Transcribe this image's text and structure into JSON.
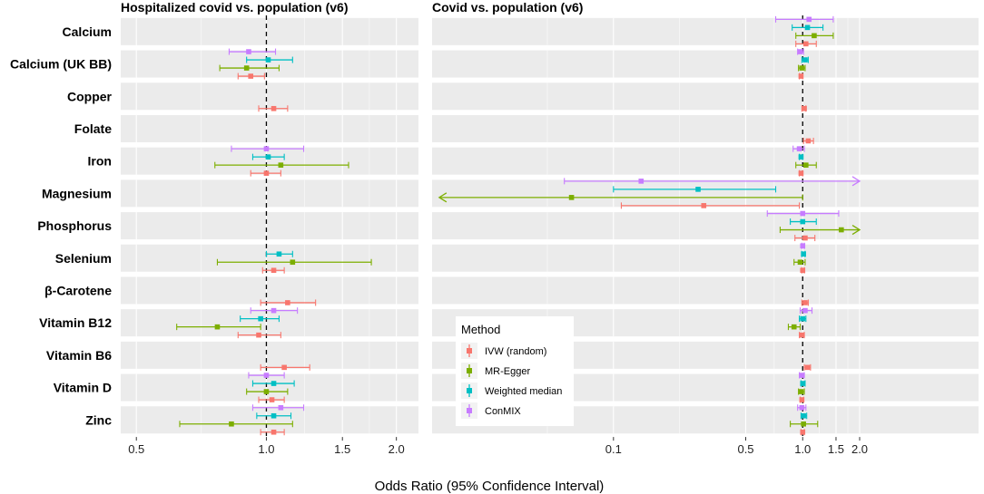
{
  "chart_data": {
    "type": "forest",
    "xlabel": "Odds Ratio (95% Confidence Interval)",
    "rows": [
      "Calcium",
      "Calcium (UK BB)",
      "Copper",
      "Folate",
      "Iron",
      "Magnesium",
      "Phosphorus",
      "Selenium",
      "β-Carotene",
      "Vitamin B12",
      "Vitamin B6",
      "Vitamin D",
      "Zinc"
    ],
    "methods": [
      {
        "name": "IVW (random)",
        "color": "#F8766D"
      },
      {
        "name": "MR-Egger",
        "color": "#7CAE00"
      },
      {
        "name": "Weighted median",
        "color": "#00BFC4"
      },
      {
        "name": "ConMIX",
        "color": "#C77CFF"
      }
    ],
    "legend": {
      "title": "Method",
      "position": "inside bottom-left of right panel"
    },
    "panels": [
      {
        "title": "Hospitalized covid vs. population (v6)",
        "xscale": "log",
        "xlim": [
          0.46,
          2.25
        ],
        "ticks": [
          0.5,
          1.0,
          1.5,
          2.0
        ],
        "tick_labels": [
          "0.5",
          "1.0",
          "1.5",
          "2.0"
        ],
        "reference": 1.0,
        "estimates": [
          {
            "row": "Calcium (UK BB)",
            "method": "ConMIX",
            "or": 0.91,
            "lo": 0.82,
            "hi": 1.05
          },
          {
            "row": "Calcium (UK BB)",
            "method": "Weighted median",
            "or": 1.01,
            "lo": 0.9,
            "hi": 1.15
          },
          {
            "row": "Calcium (UK BB)",
            "method": "MR-Egger",
            "or": 0.9,
            "lo": 0.78,
            "hi": 1.07
          },
          {
            "row": "Calcium (UK BB)",
            "method": "IVW (random)",
            "or": 0.92,
            "lo": 0.86,
            "hi": 0.99
          },
          {
            "row": "Copper",
            "method": "IVW (random)",
            "or": 1.04,
            "lo": 0.96,
            "hi": 1.12
          },
          {
            "row": "Iron",
            "method": "ConMIX",
            "or": 1.0,
            "lo": 0.83,
            "hi": 1.22
          },
          {
            "row": "Iron",
            "method": "Weighted median",
            "or": 1.01,
            "lo": 0.93,
            "hi": 1.1
          },
          {
            "row": "Iron",
            "method": "MR-Egger",
            "or": 1.08,
            "lo": 0.76,
            "hi": 1.55
          },
          {
            "row": "Iron",
            "method": "IVW (random)",
            "or": 1.0,
            "lo": 0.92,
            "hi": 1.08
          },
          {
            "row": "Selenium",
            "method": "Weighted median",
            "or": 1.07,
            "lo": 1.0,
            "hi": 1.15
          },
          {
            "row": "Selenium",
            "method": "MR-Egger",
            "or": 1.15,
            "lo": 0.77,
            "hi": 1.75
          },
          {
            "row": "Selenium",
            "method": "IVW (random)",
            "or": 1.04,
            "lo": 0.98,
            "hi": 1.1
          },
          {
            "row": "β-Carotene",
            "method": "IVW (random)",
            "or": 1.12,
            "lo": 0.97,
            "hi": 1.3
          },
          {
            "row": "Vitamin B12",
            "method": "ConMIX",
            "or": 1.04,
            "lo": 0.92,
            "hi": 1.18
          },
          {
            "row": "Vitamin B12",
            "method": "Weighted median",
            "or": 0.97,
            "lo": 0.87,
            "hi": 1.07
          },
          {
            "row": "Vitamin B12",
            "method": "MR-Egger",
            "or": 0.77,
            "lo": 0.62,
            "hi": 0.97
          },
          {
            "row": "Vitamin B12",
            "method": "IVW (random)",
            "or": 0.96,
            "lo": 0.86,
            "hi": 1.08
          },
          {
            "row": "Vitamin B6",
            "method": "IVW (random)",
            "or": 1.1,
            "lo": 0.97,
            "hi": 1.26
          },
          {
            "row": "Vitamin D",
            "method": "ConMIX",
            "or": 1.0,
            "lo": 0.91,
            "hi": 1.1
          },
          {
            "row": "Vitamin D",
            "method": "Weighted median",
            "or": 1.04,
            "lo": 0.93,
            "hi": 1.16
          },
          {
            "row": "Vitamin D",
            "method": "MR-Egger",
            "or": 1.0,
            "lo": 0.9,
            "hi": 1.12
          },
          {
            "row": "Vitamin D",
            "method": "IVW (random)",
            "or": 1.03,
            "lo": 0.96,
            "hi": 1.1
          },
          {
            "row": "Zinc",
            "method": "ConMIX",
            "or": 1.08,
            "lo": 0.93,
            "hi": 1.22
          },
          {
            "row": "Zinc",
            "method": "Weighted median",
            "or": 1.04,
            "lo": 0.95,
            "hi": 1.14
          },
          {
            "row": "Zinc",
            "method": "MR-Egger",
            "or": 0.83,
            "lo": 0.63,
            "hi": 1.15
          },
          {
            "row": "Zinc",
            "method": "IVW (random)",
            "or": 1.04,
            "lo": 0.97,
            "hi": 1.1
          }
        ]
      },
      {
        "title": "Covid vs. population (v6)",
        "xscale": "log",
        "xlim": [
          0.011,
          8.5
        ],
        "ticks": [
          0.1,
          0.5,
          1.0,
          1.5,
          2.0
        ],
        "tick_labels": [
          "0.1",
          "0.5",
          "1.0",
          "1.5",
          "2.0"
        ],
        "reference": 1.0,
        "estimates": [
          {
            "row": "Calcium",
            "method": "ConMIX",
            "or": 1.08,
            "lo": 0.72,
            "hi": 1.45
          },
          {
            "row": "Calcium",
            "method": "Weighted median",
            "or": 1.06,
            "lo": 0.88,
            "hi": 1.28
          },
          {
            "row": "Calcium",
            "method": "MR-Egger",
            "or": 1.15,
            "lo": 0.92,
            "hi": 1.45
          },
          {
            "row": "Calcium",
            "method": "IVW (random)",
            "or": 1.04,
            "lo": 0.92,
            "hi": 1.18
          },
          {
            "row": "Calcium (UK BB)",
            "method": "ConMIX",
            "or": 0.97,
            "lo": 0.94,
            "hi": 1.01
          },
          {
            "row": "Calcium (UK BB)",
            "method": "Weighted median",
            "or": 1.03,
            "lo": 0.99,
            "hi": 1.07
          },
          {
            "row": "Calcium (UK BB)",
            "method": "MR-Egger",
            "or": 0.99,
            "lo": 0.95,
            "hi": 1.03
          },
          {
            "row": "Calcium (UK BB)",
            "method": "IVW (random)",
            "or": 0.98,
            "lo": 0.96,
            "hi": 1.0
          },
          {
            "row": "Copper",
            "method": "IVW (random)",
            "or": 1.02,
            "lo": 0.99,
            "hi": 1.04
          },
          {
            "row": "Folate",
            "method": "IVW (random)",
            "or": 1.07,
            "lo": 1.01,
            "hi": 1.14
          },
          {
            "row": "Iron",
            "method": "ConMIX",
            "or": 0.96,
            "lo": 0.89,
            "hi": 1.02
          },
          {
            "row": "Iron",
            "method": "Weighted median",
            "or": 0.98,
            "lo": 0.96,
            "hi": 1.0
          },
          {
            "row": "Iron",
            "method": "MR-Egger",
            "or": 1.04,
            "lo": 0.92,
            "hi": 1.18
          },
          {
            "row": "Iron",
            "method": "IVW (random)",
            "or": 0.98,
            "lo": 0.96,
            "hi": 1.0
          },
          {
            "row": "Magnesium",
            "method": "ConMIX",
            "or": 0.14,
            "lo": 0.055,
            "hi": 2.0,
            "arrow_hi": true
          },
          {
            "row": "Magnesium",
            "method": "Weighted median",
            "or": 0.28,
            "lo": 0.1,
            "hi": 0.72
          },
          {
            "row": "Magnesium",
            "method": "MR-Egger",
            "or": 0.06,
            "lo": 0.012,
            "hi": 1.0,
            "arrow_lo": true
          },
          {
            "row": "Magnesium",
            "method": "IVW (random)",
            "or": 0.3,
            "lo": 0.11,
            "hi": 0.96
          },
          {
            "row": "Phosphorus",
            "method": "ConMIX",
            "or": 1.0,
            "lo": 0.65,
            "hi": 1.55
          },
          {
            "row": "Phosphorus",
            "method": "Weighted median",
            "or": 1.0,
            "lo": 0.86,
            "hi": 1.18
          },
          {
            "row": "Phosphorus",
            "method": "MR-Egger",
            "or": 1.6,
            "lo": 0.76,
            "hi": 2.0,
            "arrow_hi": true
          },
          {
            "row": "Phosphorus",
            "method": "IVW (random)",
            "or": 1.03,
            "lo": 0.91,
            "hi": 1.16
          },
          {
            "row": "Selenium",
            "method": "ConMIX",
            "or": 1.0,
            "lo": 0.99,
            "hi": 1.02
          },
          {
            "row": "Selenium",
            "method": "Weighted median",
            "or": 1.01,
            "lo": 0.99,
            "hi": 1.03
          },
          {
            "row": "Selenium",
            "method": "MR-Egger",
            "or": 0.97,
            "lo": 0.9,
            "hi": 1.03
          },
          {
            "row": "Selenium",
            "method": "IVW (random)",
            "or": 1.0,
            "lo": 0.99,
            "hi": 1.02
          },
          {
            "row": "β-Carotene",
            "method": "IVW (random)",
            "or": 1.03,
            "lo": 0.99,
            "hi": 1.07
          },
          {
            "row": "Vitamin B12",
            "method": "ConMIX",
            "or": 1.03,
            "lo": 0.97,
            "hi": 1.12
          },
          {
            "row": "Vitamin B12",
            "method": "Weighted median",
            "or": 1.0,
            "lo": 0.96,
            "hi": 1.04
          },
          {
            "row": "Vitamin B12",
            "method": "MR-Egger",
            "or": 0.9,
            "lo": 0.84,
            "hi": 0.97
          },
          {
            "row": "Vitamin B12",
            "method": "IVW (random)",
            "or": 0.99,
            "lo": 0.96,
            "hi": 1.02
          },
          {
            "row": "Vitamin B6",
            "method": "IVW (random)",
            "or": 1.06,
            "lo": 1.02,
            "hi": 1.1
          },
          {
            "row": "Vitamin D",
            "method": "ConMIX",
            "or": 0.99,
            "lo": 0.96,
            "hi": 1.02
          },
          {
            "row": "Vitamin D",
            "method": "Weighted median",
            "or": 1.0,
            "lo": 0.98,
            "hi": 1.03
          },
          {
            "row": "Vitamin D",
            "method": "MR-Egger",
            "or": 0.98,
            "lo": 0.95,
            "hi": 1.02
          },
          {
            "row": "Vitamin D",
            "method": "IVW (random)",
            "or": 0.99,
            "lo": 0.97,
            "hi": 1.01
          },
          {
            "row": "Zinc",
            "method": "ConMIX",
            "or": 0.99,
            "lo": 0.94,
            "hi": 1.04
          },
          {
            "row": "Zinc",
            "method": "Weighted median",
            "or": 1.01,
            "lo": 0.98,
            "hi": 1.05
          },
          {
            "row": "Zinc",
            "method": "MR-Egger",
            "or": 1.01,
            "lo": 0.86,
            "hi": 1.2
          },
          {
            "row": "Zinc",
            "method": "IVW (random)",
            "or": 1.0,
            "lo": 0.98,
            "hi": 1.02
          }
        ]
      }
    ]
  }
}
